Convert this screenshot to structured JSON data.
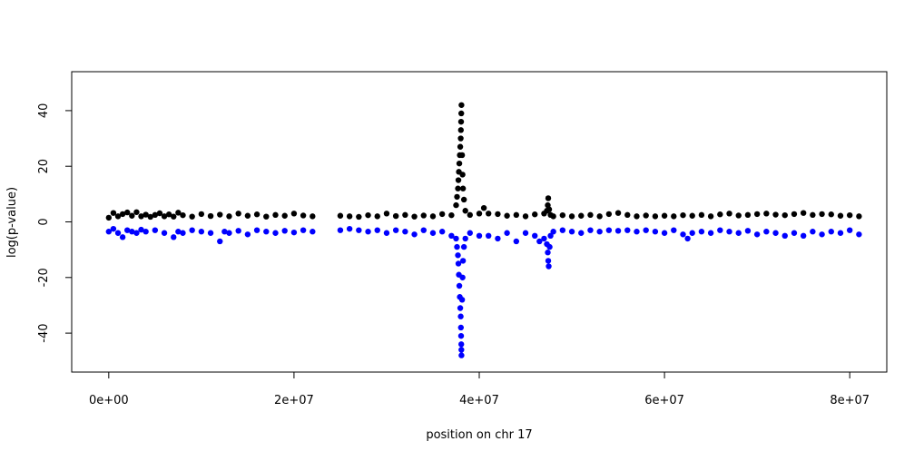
{
  "chart_data": {
    "type": "scatter",
    "title": "",
    "xlabel": "position on chr 17",
    "ylabel": "log(p-value)",
    "xlim": [
      -4000000,
      84000000
    ],
    "ylim": [
      -54,
      54
    ],
    "x_ticks": [
      {
        "value": 0,
        "label": "0e+00"
      },
      {
        "value": 20000000,
        "label": "2e+07"
      },
      {
        "value": 40000000,
        "label": "4e+07"
      },
      {
        "value": 60000000,
        "label": "6e+07"
      },
      {
        "value": 80000000,
        "label": "8e+07"
      }
    ],
    "y_ticks": [
      {
        "value": -40,
        "label": "-40"
      },
      {
        "value": -20,
        "label": "-20"
      },
      {
        "value": 0,
        "label": "0"
      },
      {
        "value": 20,
        "label": "20"
      },
      {
        "value": 40,
        "label": "40"
      }
    ],
    "grid": false,
    "legend": "none",
    "marker": "filled-circle",
    "series": [
      {
        "color": "#000000",
        "points": [
          [
            0,
            1.5
          ],
          [
            500000,
            3.2
          ],
          [
            1000000,
            2.0
          ],
          [
            1500000,
            2.8
          ],
          [
            2000000,
            3.4
          ],
          [
            2500000,
            2.2
          ],
          [
            3000000,
            3.5
          ],
          [
            3500000,
            2.0
          ],
          [
            4000000,
            2.6
          ],
          [
            4500000,
            1.8
          ],
          [
            5000000,
            2.5
          ],
          [
            5500000,
            3.1
          ],
          [
            6000000,
            2.0
          ],
          [
            6500000,
            2.7
          ],
          [
            7000000,
            1.9
          ],
          [
            7500000,
            3.3
          ],
          [
            8000000,
            2.4
          ],
          [
            9000000,
            1.9
          ],
          [
            10000000,
            2.8
          ],
          [
            11000000,
            2.1
          ],
          [
            12000000,
            2.6
          ],
          [
            13000000,
            2.0
          ],
          [
            14000000,
            3.0
          ],
          [
            15000000,
            2.2
          ],
          [
            16000000,
            2.7
          ],
          [
            17000000,
            1.9
          ],
          [
            18000000,
            2.5
          ],
          [
            19000000,
            2.2
          ],
          [
            20000000,
            3.0
          ],
          [
            21000000,
            2.3
          ],
          [
            22000000,
            2.0
          ],
          [
            25000000,
            2.2
          ],
          [
            26000000,
            2.0
          ],
          [
            27000000,
            1.8
          ],
          [
            28000000,
            2.4
          ],
          [
            29000000,
            2.0
          ],
          [
            30000000,
            3.0
          ],
          [
            31000000,
            2.1
          ],
          [
            32000000,
            2.5
          ],
          [
            33000000,
            1.9
          ],
          [
            34000000,
            2.3
          ],
          [
            35000000,
            2.0
          ],
          [
            36000000,
            2.8
          ],
          [
            37000000,
            2.4
          ],
          [
            37500000,
            6.0
          ],
          [
            37600000,
            9.0
          ],
          [
            37700000,
            12.0
          ],
          [
            37750000,
            15.0
          ],
          [
            37800000,
            18.0
          ],
          [
            37850000,
            21.0
          ],
          [
            37900000,
            24.0
          ],
          [
            37950000,
            27.0
          ],
          [
            38000000,
            30.0
          ],
          [
            38020000,
            33.0
          ],
          [
            38040000,
            36.0
          ],
          [
            38060000,
            39.0
          ],
          [
            38080000,
            42.0
          ],
          [
            38150000,
            24.0
          ],
          [
            38200000,
            17.0
          ],
          [
            38250000,
            12.0
          ],
          [
            38350000,
            8.0
          ],
          [
            38500000,
            4.0
          ],
          [
            39000000,
            2.5
          ],
          [
            40000000,
            3.0
          ],
          [
            40500000,
            5.0
          ],
          [
            41000000,
            3.0
          ],
          [
            42000000,
            2.8
          ],
          [
            43000000,
            2.2
          ],
          [
            44000000,
            2.5
          ],
          [
            45000000,
            2.0
          ],
          [
            46000000,
            2.7
          ],
          [
            47000000,
            3.0
          ],
          [
            47300000,
            4.0
          ],
          [
            47400000,
            6.0
          ],
          [
            47450000,
            8.5
          ],
          [
            47550000,
            4.5
          ],
          [
            47700000,
            2.5
          ],
          [
            48000000,
            2.0
          ],
          [
            49000000,
            2.4
          ],
          [
            50000000,
            2.0
          ],
          [
            51000000,
            2.2
          ],
          [
            52000000,
            2.5
          ],
          [
            53000000,
            2.0
          ],
          [
            54000000,
            2.8
          ],
          [
            55000000,
            3.2
          ],
          [
            56000000,
            2.5
          ],
          [
            57000000,
            2.0
          ],
          [
            58000000,
            2.3
          ],
          [
            59000000,
            2.0
          ],
          [
            60000000,
            2.2
          ],
          [
            61000000,
            2.0
          ],
          [
            62000000,
            2.4
          ],
          [
            63000000,
            2.2
          ],
          [
            64000000,
            2.5
          ],
          [
            65000000,
            2.0
          ],
          [
            66000000,
            2.7
          ],
          [
            67000000,
            3.0
          ],
          [
            68000000,
            2.3
          ],
          [
            69000000,
            2.5
          ],
          [
            70000000,
            2.8
          ],
          [
            71000000,
            3.0
          ],
          [
            72000000,
            2.6
          ],
          [
            73000000,
            2.4
          ],
          [
            74000000,
            2.8
          ],
          [
            75000000,
            3.2
          ],
          [
            76000000,
            2.5
          ],
          [
            77000000,
            2.8
          ],
          [
            78000000,
            2.7
          ],
          [
            79000000,
            2.2
          ],
          [
            80000000,
            2.4
          ],
          [
            81000000,
            2.0
          ]
        ]
      },
      {
        "color": "#0000ff",
        "points": [
          [
            0,
            -3.5
          ],
          [
            500000,
            -2.5
          ],
          [
            1000000,
            -4.0
          ],
          [
            1500000,
            -5.5
          ],
          [
            2000000,
            -3.0
          ],
          [
            2500000,
            -3.5
          ],
          [
            3000000,
            -4.0
          ],
          [
            3500000,
            -2.8
          ],
          [
            4000000,
            -3.5
          ],
          [
            5000000,
            -3.0
          ],
          [
            6000000,
            -4.0
          ],
          [
            7000000,
            -5.5
          ],
          [
            7500000,
            -3.5
          ],
          [
            8000000,
            -4.0
          ],
          [
            9000000,
            -3.0
          ],
          [
            10000000,
            -3.5
          ],
          [
            11000000,
            -4.0
          ],
          [
            12000000,
            -7.0
          ],
          [
            12500000,
            -3.5
          ],
          [
            13000000,
            -4.0
          ],
          [
            14000000,
            -3.2
          ],
          [
            15000000,
            -4.5
          ],
          [
            16000000,
            -3.0
          ],
          [
            17000000,
            -3.5
          ],
          [
            18000000,
            -4.0
          ],
          [
            19000000,
            -3.2
          ],
          [
            20000000,
            -3.8
          ],
          [
            21000000,
            -3.0
          ],
          [
            22000000,
            -3.5
          ],
          [
            25000000,
            -3.0
          ],
          [
            26000000,
            -2.5
          ],
          [
            27000000,
            -3.0
          ],
          [
            28000000,
            -3.5
          ],
          [
            29000000,
            -3.0
          ],
          [
            30000000,
            -4.0
          ],
          [
            31000000,
            -3.0
          ],
          [
            32000000,
            -3.5
          ],
          [
            33000000,
            -4.5
          ],
          [
            34000000,
            -3.0
          ],
          [
            35000000,
            -4.0
          ],
          [
            36000000,
            -3.5
          ],
          [
            37000000,
            -5.0
          ],
          [
            37500000,
            -6.0
          ],
          [
            37600000,
            -9.0
          ],
          [
            37700000,
            -12.0
          ],
          [
            37750000,
            -15.0
          ],
          [
            37800000,
            -19.0
          ],
          [
            37850000,
            -23.0
          ],
          [
            37900000,
            -27.0
          ],
          [
            37950000,
            -31.0
          ],
          [
            38000000,
            -34.0
          ],
          [
            38020000,
            -38.0
          ],
          [
            38040000,
            -41.0
          ],
          [
            38060000,
            -44.0
          ],
          [
            38070000,
            -46.0
          ],
          [
            38080000,
            -48.0
          ],
          [
            38150000,
            -28.0
          ],
          [
            38200000,
            -20.0
          ],
          [
            38250000,
            -14.0
          ],
          [
            38350000,
            -9.0
          ],
          [
            38500000,
            -6.0
          ],
          [
            39000000,
            -4.0
          ],
          [
            40000000,
            -5.0
          ],
          [
            41000000,
            -5.0
          ],
          [
            42000000,
            -6.0
          ],
          [
            43000000,
            -4.0
          ],
          [
            44000000,
            -7.0
          ],
          [
            45000000,
            -4.0
          ],
          [
            46000000,
            -5.0
          ],
          [
            46500000,
            -7.0
          ],
          [
            47000000,
            -6.0
          ],
          [
            47300000,
            -8.0
          ],
          [
            47400000,
            -11.0
          ],
          [
            47450000,
            -14.0
          ],
          [
            47500000,
            -16.0
          ],
          [
            47600000,
            -9.0
          ],
          [
            47700000,
            -5.0
          ],
          [
            48000000,
            -3.5
          ],
          [
            49000000,
            -3.0
          ],
          [
            50000000,
            -3.5
          ],
          [
            51000000,
            -4.0
          ],
          [
            52000000,
            -3.0
          ],
          [
            53000000,
            -3.5
          ],
          [
            54000000,
            -3.0
          ],
          [
            55000000,
            -3.2
          ],
          [
            56000000,
            -3.0
          ],
          [
            57000000,
            -3.5
          ],
          [
            58000000,
            -3.0
          ],
          [
            59000000,
            -3.5
          ],
          [
            60000000,
            -4.0
          ],
          [
            61000000,
            -3.0
          ],
          [
            62000000,
            -4.5
          ],
          [
            62500000,
            -6.0
          ],
          [
            63000000,
            -4.0
          ],
          [
            64000000,
            -3.5
          ],
          [
            65000000,
            -4.0
          ],
          [
            66000000,
            -3.0
          ],
          [
            67000000,
            -3.5
          ],
          [
            68000000,
            -4.0
          ],
          [
            69000000,
            -3.2
          ],
          [
            70000000,
            -4.5
          ],
          [
            71000000,
            -3.5
          ],
          [
            72000000,
            -4.0
          ],
          [
            73000000,
            -5.0
          ],
          [
            74000000,
            -4.0
          ],
          [
            75000000,
            -5.0
          ],
          [
            76000000,
            -3.5
          ],
          [
            77000000,
            -4.5
          ],
          [
            78000000,
            -3.5
          ],
          [
            79000000,
            -4.0
          ],
          [
            80000000,
            -3.0
          ],
          [
            81000000,
            -4.5
          ]
        ]
      }
    ]
  }
}
